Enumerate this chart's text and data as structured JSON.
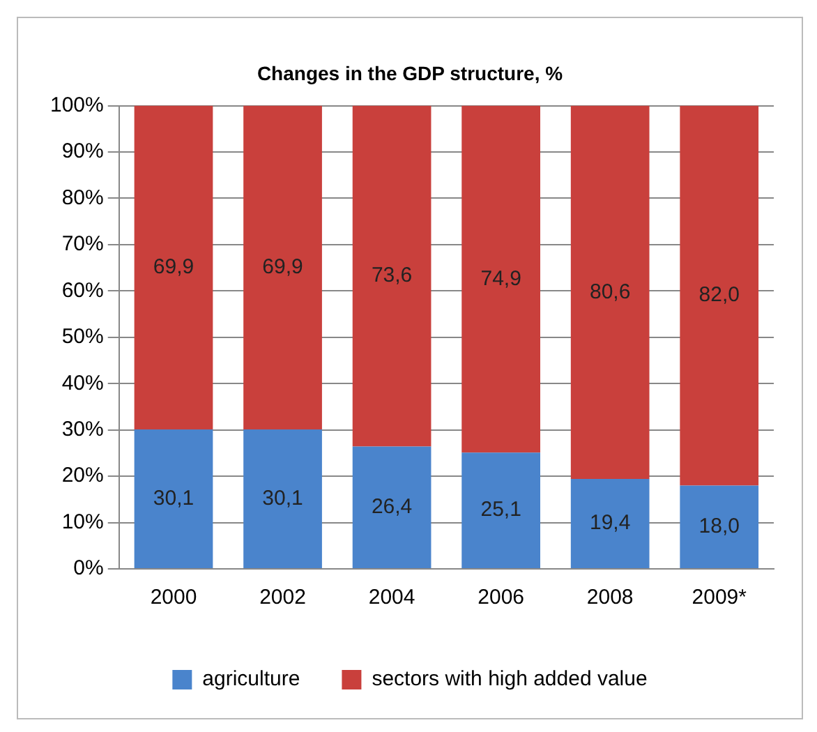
{
  "chart_data": {
    "type": "bar",
    "title": "Changes in the GDP structure, %",
    "categories": [
      "2000",
      "2002",
      "2004",
      "2006",
      "2008",
      "2009*"
    ],
    "stacked": true,
    "grid": "y",
    "legend": "bottom",
    "ylim": [
      0,
      100
    ],
    "yticks": [
      {
        "value": 0,
        "label": "0%"
      },
      {
        "value": 10,
        "label": "10%"
      },
      {
        "value": 20,
        "label": "20%"
      },
      {
        "value": 30,
        "label": "30%"
      },
      {
        "value": 40,
        "label": "40%"
      },
      {
        "value": 50,
        "label": "50%"
      },
      {
        "value": 60,
        "label": "60%"
      },
      {
        "value": 70,
        "label": "70%"
      },
      {
        "value": 80,
        "label": "80%"
      },
      {
        "value": 90,
        "label": "90%"
      },
      {
        "value": 100,
        "label": "100%"
      }
    ],
    "series": [
      {
        "name": "agriculture",
        "color": "#4a84cc",
        "values": [
          30.1,
          30.1,
          26.4,
          25.1,
          19.4,
          18.0
        ],
        "value_labels": [
          "30,1",
          "30,1",
          "26,4",
          "25,1",
          "19,4",
          "18,0"
        ]
      },
      {
        "name": "sectors with high added value",
        "color": "#c9403c",
        "values": [
          69.9,
          69.9,
          73.6,
          74.9,
          80.6,
          82.0
        ],
        "value_labels": [
          "69,9",
          "69,9",
          "73,6",
          "74,9",
          "80,6",
          "82,0"
        ]
      }
    ]
  }
}
